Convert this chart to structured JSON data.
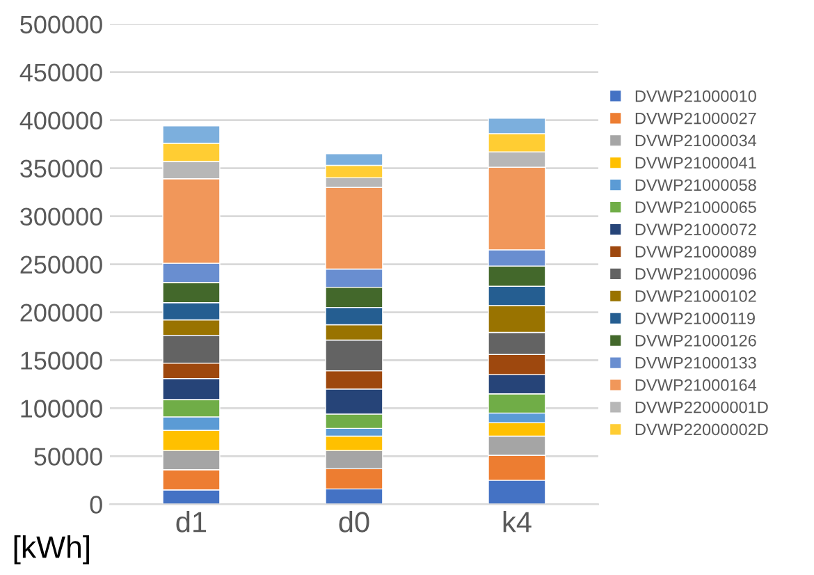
{
  "chart_data": {
    "type": "bar",
    "stacked": true,
    "ylabel": "[kWh]",
    "categories": [
      "d1",
      "d0",
      "k4"
    ],
    "ylim": [
      0,
      500000
    ],
    "yticks": [
      0,
      50000,
      100000,
      150000,
      200000,
      250000,
      300000,
      350000,
      400000,
      450000,
      500000
    ],
    "grid": "y",
    "legend": "right",
    "series": [
      {
        "name": "DVWP21000010",
        "color": "#4472c4",
        "values": [
          15000,
          16000,
          25000
        ]
      },
      {
        "name": "DVWP21000027",
        "color": "#ed7d31",
        "values": [
          21000,
          21000,
          26000
        ]
      },
      {
        "name": "DVWP21000034",
        "color": "#a5a5a5",
        "values": [
          20000,
          19000,
          20000
        ]
      },
      {
        "name": "DVWP21000041",
        "color": "#ffc000",
        "values": [
          21000,
          15000,
          14000
        ]
      },
      {
        "name": "DVWP21000058",
        "color": "#5b9bd5",
        "values": [
          14000,
          8000,
          10000
        ]
      },
      {
        "name": "DVWP21000065",
        "color": "#70ad47",
        "values": [
          18000,
          15000,
          20000
        ]
      },
      {
        "name": "DVWP21000072",
        "color": "#264478",
        "values": [
          22000,
          26000,
          20000
        ]
      },
      {
        "name": "DVWP21000089",
        "color": "#9e480e",
        "values": [
          16000,
          19000,
          21000
        ]
      },
      {
        "name": "DVWP21000096",
        "color": "#636363",
        "values": [
          29000,
          32000,
          23000
        ]
      },
      {
        "name": "DVWP21000102",
        "color": "#997300",
        "values": [
          16000,
          16000,
          28000
        ]
      },
      {
        "name": "DVWP21000119",
        "color": "#255e91",
        "values": [
          18000,
          18000,
          20000
        ]
      },
      {
        "name": "DVWP21000126",
        "color": "#43682b",
        "values": [
          21000,
          21000,
          21000
        ]
      },
      {
        "name": "DVWP21000133",
        "color": "#698ed0",
        "values": [
          20000,
          19000,
          17000
        ]
      },
      {
        "name": "DVWP21000164",
        "color": "#f1975a",
        "values": [
          88000,
          85000,
          86000
        ]
      },
      {
        "name": "DVWP22000001D",
        "color": "#b7b7b7",
        "values": [
          18000,
          10000,
          16000
        ]
      },
      {
        "name": "DVWP22000002D",
        "color": "#ffcd33",
        "values": [
          19000,
          13000,
          19000
        ]
      },
      {
        "color": "#7cafdd",
        "values": [
          18000,
          12000,
          16000
        ]
      }
    ]
  }
}
